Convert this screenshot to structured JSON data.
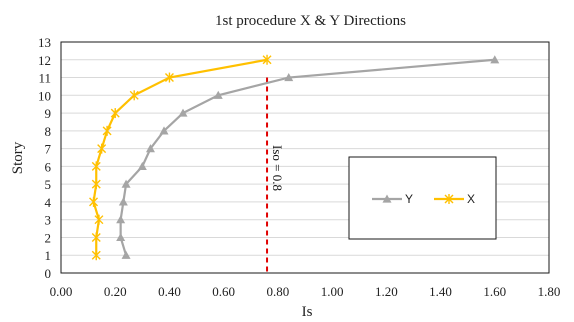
{
  "chart_data": {
    "type": "line",
    "title": "1st procedure X & Y Directions",
    "xlabel": "Is",
    "ylabel": "Story",
    "xlim": [
      0,
      1.8
    ],
    "ylim": [
      0,
      13
    ],
    "x_ticks": [
      "0.00",
      "0.20",
      "0.40",
      "0.60",
      "0.80",
      "1.00",
      "1.20",
      "1.40",
      "1.60",
      "1.80"
    ],
    "y_ticks": [
      "0",
      "1",
      "2",
      "3",
      "4",
      "5",
      "6",
      "7",
      "8",
      "9",
      "10",
      "11",
      "12",
      "13"
    ],
    "grid": "horizontal",
    "legend_position": "right",
    "series": [
      {
        "name": "Y",
        "color": "#a5a5a5",
        "marker": "triangle",
        "points": [
          [
            0.24,
            1
          ],
          [
            0.22,
            2
          ],
          [
            0.22,
            3
          ],
          [
            0.23,
            4
          ],
          [
            0.24,
            5
          ],
          [
            0.3,
            6
          ],
          [
            0.33,
            7
          ],
          [
            0.38,
            8
          ],
          [
            0.45,
            9
          ],
          [
            0.58,
            10
          ],
          [
            0.84,
            11
          ],
          [
            1.6,
            12
          ]
        ]
      },
      {
        "name": "X",
        "color": "#ffc000",
        "marker": "star",
        "points": [
          [
            0.13,
            1
          ],
          [
            0.13,
            2
          ],
          [
            0.14,
            3
          ],
          [
            0.12,
            4
          ],
          [
            0.13,
            5
          ],
          [
            0.13,
            6
          ],
          [
            0.15,
            7
          ],
          [
            0.17,
            8
          ],
          [
            0.2,
            9
          ],
          [
            0.27,
            10
          ],
          [
            0.4,
            11
          ],
          [
            0.76,
            12
          ]
        ]
      }
    ],
    "reference_line": {
      "label": "Iso = 0.8",
      "x": 0.76,
      "color": "#e00000"
    }
  }
}
